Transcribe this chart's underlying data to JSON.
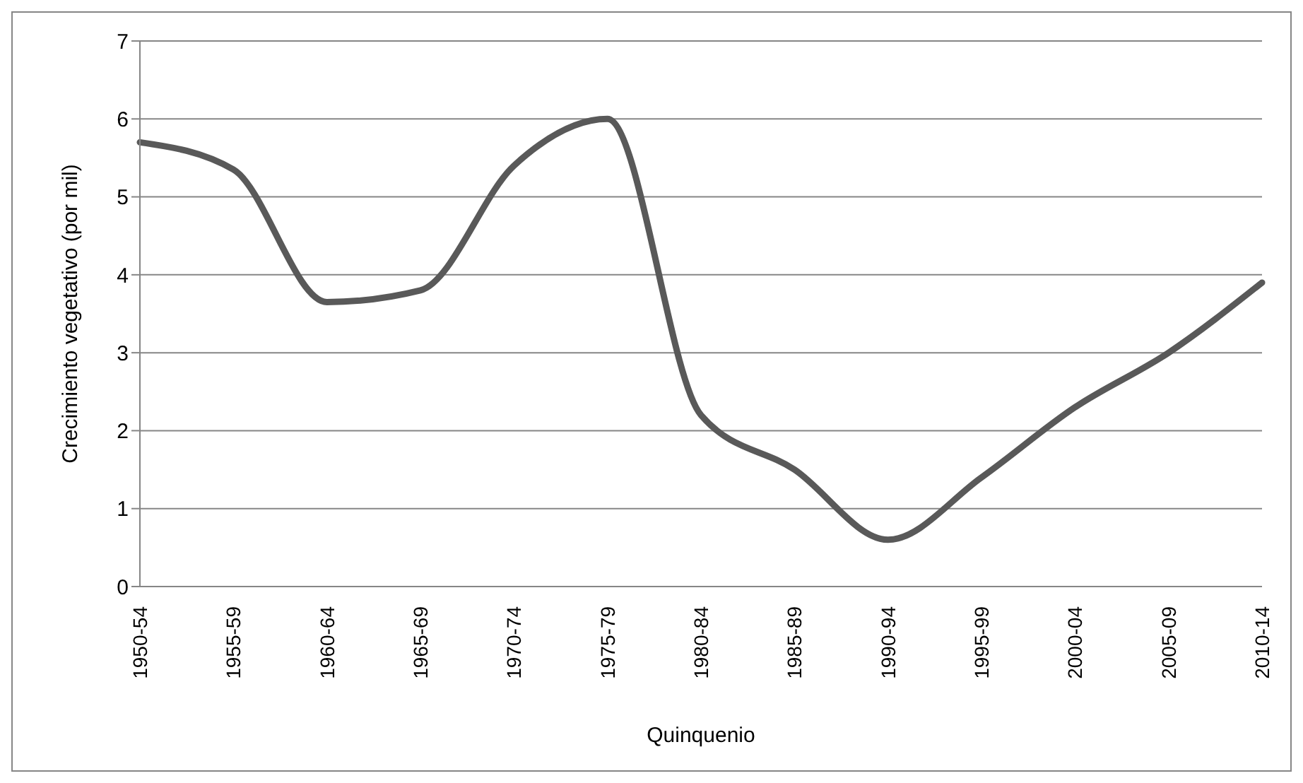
{
  "chart_data": {
    "type": "line",
    "xlabel": "Quinquenio",
    "ylabel": "Crecimiento vegetativo (por mil)",
    "categories": [
      "1950-54",
      "1955-59",
      "1960-64",
      "1965-69",
      "1970-74",
      "1975-79",
      "1980-84",
      "1985-89",
      "1990-94",
      "1995-99",
      "2000-04",
      "2005-09",
      "2010-14"
    ],
    "series": [
      {
        "color": "#595959",
        "values": [
          5.7,
          5.35,
          3.65,
          3.8,
          5.4,
          6.0,
          2.2,
          1.5,
          0.6,
          1.4,
          2.3,
          3.0,
          3.9
        ]
      }
    ],
    "ylim": [
      0,
      7
    ],
    "yticks": [
      0,
      1,
      2,
      3,
      4,
      5,
      6,
      7
    ],
    "grid": "y",
    "legend": false,
    "marker": "none",
    "line_style": "solid"
  }
}
